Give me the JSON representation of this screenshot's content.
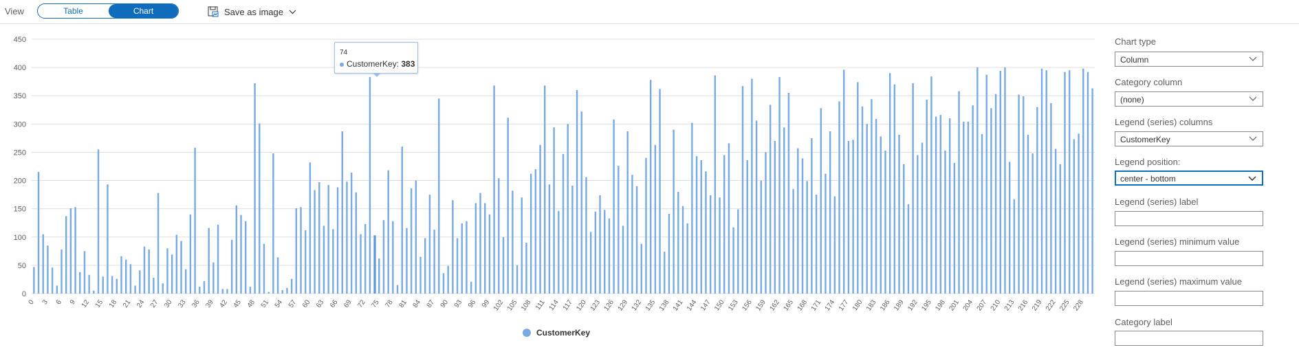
{
  "toolbar": {
    "view_label": "View",
    "toggle_table": "Table",
    "toggle_chart": "Chart",
    "save_label": "Save as image",
    "save_icon": "save-image-icon",
    "save_chevron": "chevron-down-icon"
  },
  "tooltip": {
    "category": "74",
    "series": "CustomerKey",
    "separator": ": ",
    "value": "383"
  },
  "legend": {
    "label": "CustomerKey",
    "color": "#77a9e5"
  },
  "panel": {
    "chart_type_label": "Chart type",
    "chart_type_value": "Column",
    "category_column_label": "Category column",
    "category_column_value": "(none)",
    "legend_series_columns_label": "Legend (series) columns",
    "legend_series_columns_value": "CustomerKey",
    "legend_position_label": "Legend position:",
    "legend_position_value": "center - bottom",
    "legend_series_label_label": "Legend (series) label",
    "legend_series_min_label": "Legend (series) minimum value",
    "legend_series_max_label": "Legend (series) maximum value",
    "category_label_label": "Category label"
  },
  "colors": {
    "accent": "#0f6cbd",
    "bar": "#77a9e5",
    "grid": "#e1dfdd"
  },
  "chart_data": {
    "type": "bar",
    "ylim": [
      0,
      450
    ],
    "yticks": [
      0,
      50,
      100,
      150,
      200,
      250,
      300,
      350,
      400,
      450
    ],
    "x_tick_step": 3,
    "highlight_index": 74,
    "series": [
      {
        "name": "CustomerKey",
        "values": [
          47,
          215,
          105,
          85,
          46,
          14,
          78,
          137,
          151,
          153,
          38,
          75,
          33,
          5,
          255,
          30,
          193,
          31,
          26,
          66,
          60,
          52,
          14,
          41,
          83,
          78,
          28,
          178,
          18,
          80,
          69,
          104,
          93,
          43,
          140,
          258,
          12,
          22,
          116,
          55,
          122,
          8,
          8,
          95,
          156,
          139,
          128,
          12,
          372,
          301,
          88,
          3,
          248,
          64,
          6,
          10,
          26,
          151,
          153,
          112,
          232,
          183,
          197,
          120,
          192,
          114,
          188,
          287,
          198,
          214,
          179,
          105,
          123,
          383,
          103,
          62,
          130,
          218,
          128,
          15,
          260,
          116,
          186,
          200,
          65,
          98,
          175,
          113,
          345,
          36,
          49,
          165,
          98,
          124,
          128,
          21,
          160,
          178,
          160,
          140,
          368,
          204,
          100,
          311,
          182,
          50,
          170,
          90,
          212,
          220,
          263,
          368,
          193,
          294,
          146,
          247,
          300,
          191,
          360,
          322,
          206,
          109,
          145,
          174,
          148,
          133,
          308,
          226,
          120,
          287,
          210,
          190,
          88,
          240,
          378,
          263,
          362,
          74,
          141,
          290,
          180,
          155,
          124,
          302,
          243,
          236,
          216,
          174,
          386,
          170,
          245,
          266,
          117,
          149,
          367,
          236,
          380,
          306,
          200,
          250,
          334,
          270,
          383,
          294,
          355,
          185,
          257,
          239,
          199,
          275,
          175,
          328,
          212,
          287,
          172,
          340,
          396,
          270,
          272,
          374,
          331,
          300,
          344,
          309,
          278,
          253,
          390,
          370,
          281,
          229,
          158,
          372,
          245,
          267,
          343,
          384,
          313,
          316,
          253,
          310,
          231,
          358,
          304,
          304,
          333,
          400,
          282,
          387,
          328,
          353,
          394,
          400,
          233,
          167,
          352,
          349,
          281,
          248,
          330,
          398,
          395,
          337,
          256,
          229,
          392,
          395,
          273,
          283,
          398,
          392,
          363
        ]
      }
    ]
  }
}
